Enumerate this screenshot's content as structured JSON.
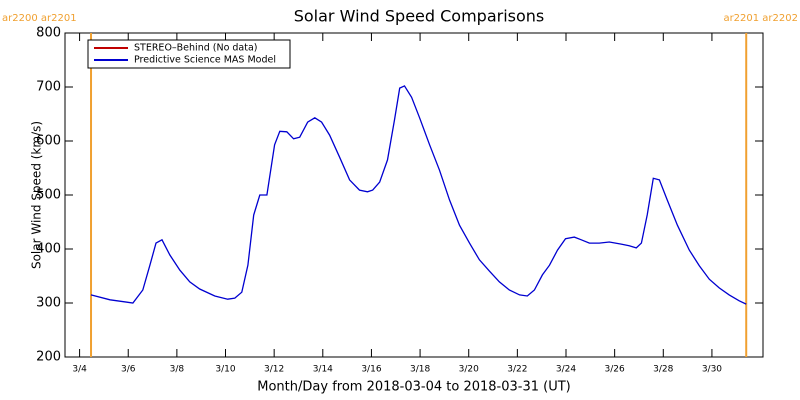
{
  "chart_data": {
    "type": "line",
    "title": "Solar Wind Speed Comparisons",
    "x_label": "Month/Day from 2018-03-04 to 2018-03-31 (UT)",
    "y_label": "Solar Wind Speed (km/s)",
    "x": [
      4.47,
      5.25,
      6.19,
      6.6,
      6.89,
      7.14,
      7.39,
      7.71,
      8.12,
      8.53,
      8.94,
      9.56,
      10.09,
      10.38,
      10.67,
      10.92,
      11.16,
      11.41,
      11.7,
      12.02,
      12.23,
      12.52,
      12.8,
      13.05,
      13.38,
      13.67,
      13.95,
      14.28,
      14.69,
      15.1,
      15.51,
      15.84,
      16.05,
      16.34,
      16.66,
      16.95,
      17.16,
      17.36,
      17.65,
      17.98,
      18.39,
      18.8,
      19.21,
      19.62,
      20.03,
      20.44,
      20.85,
      21.26,
      21.67,
      22.09,
      22.41,
      22.7,
      23.03,
      23.32,
      23.65,
      23.98,
      24.34,
      24.63,
      24.96,
      25.37,
      25.78,
      26.27,
      26.6,
      26.89,
      27.1,
      27.34,
      27.59,
      27.84,
      28.16,
      28.58,
      29.07,
      29.48,
      29.89,
      30.3,
      30.71,
      31.12,
      31.41
    ],
    "series": [
      {
        "name": "STEREO–Behind (No data)",
        "color": "#c00000",
        "values": [
          null,
          null,
          null,
          null,
          null,
          null,
          null,
          null,
          null,
          null,
          null,
          null,
          null,
          null,
          null,
          null,
          null,
          null,
          null,
          null,
          null,
          null,
          null,
          null,
          null,
          null,
          null,
          null,
          null,
          null,
          null,
          null,
          null,
          null,
          null,
          null,
          null,
          null,
          null,
          null,
          null,
          null,
          null,
          null,
          null,
          null,
          null,
          null,
          null,
          null,
          null,
          null,
          null,
          null,
          null,
          null,
          null,
          null,
          null,
          null,
          null,
          null,
          null,
          null,
          null,
          null,
          null,
          null,
          null,
          null,
          null,
          null,
          null,
          null,
          null,
          null,
          null
        ]
      },
      {
        "name": "Predictive Science MAS Model",
        "color": "#0000d0",
        "values": [
          315,
          306,
          300,
          324,
          370,
          411,
          417,
          389,
          361,
          339,
          326,
          313,
          307,
          309,
          320,
          370,
          463,
          500,
          500,
          593,
          618,
          617,
          604,
          607,
          635,
          643,
          635,
          611,
          570,
          528,
          509,
          506,
          509,
          524,
          565,
          639,
          698,
          702,
          681,
          643,
          593,
          546,
          491,
          444,
          411,
          380,
          359,
          339,
          324,
          315,
          313,
          324,
          352,
          370,
          398,
          419,
          422,
          417,
          411,
          411,
          413,
          409,
          406,
          402,
          411,
          463,
          531,
          528,
          491,
          444,
          398,
          369,
          344,
          328,
          315,
          304,
          298
        ]
      }
    ],
    "vlines": [
      {
        "x": 4.47,
        "label": "ar2200 ar2201"
      },
      {
        "x": 31.41,
        "label": "ar2201 ar2202"
      }
    ],
    "vline_color": "#f0a030",
    "xlim": [
      3.4,
      32.1
    ],
    "xticks": [
      {
        "value": 4,
        "label": "3/4"
      },
      {
        "value": 6,
        "label": "3/6"
      },
      {
        "value": 8,
        "label": "3/8"
      },
      {
        "value": 10,
        "label": "3/10"
      },
      {
        "value": 12,
        "label": "3/12"
      },
      {
        "value": 14,
        "label": "3/14"
      },
      {
        "value": 16,
        "label": "3/16"
      },
      {
        "value": 18,
        "label": "3/18"
      },
      {
        "value": 20,
        "label": "3/20"
      },
      {
        "value": 22,
        "label": "3/22"
      },
      {
        "value": 24,
        "label": "3/24"
      },
      {
        "value": 26,
        "label": "3/26"
      },
      {
        "value": 28,
        "label": "3/28"
      },
      {
        "value": 30,
        "label": "3/30"
      }
    ],
    "ylim": [
      200,
      800
    ],
    "yticks": [
      200,
      300,
      400,
      500,
      600,
      700,
      800
    ],
    "legend": "top-left"
  }
}
